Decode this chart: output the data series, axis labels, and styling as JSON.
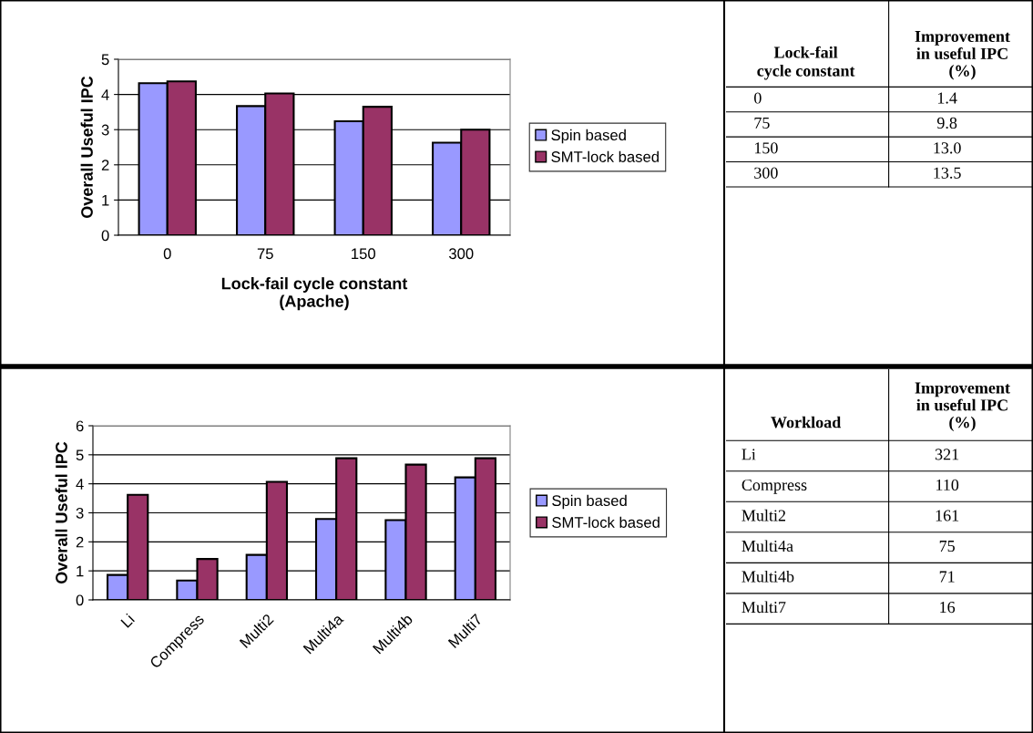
{
  "chart_data": [
    {
      "type": "bar",
      "xlabel": "Lock-fail cycle constant\n(Apache)",
      "ylabel": "Overall Useful IPC",
      "categories": [
        "0",
        "75",
        "150",
        "300"
      ],
      "series": [
        {
          "name": "Spin based",
          "color": "#9999ff",
          "values": [
            4.32,
            3.67,
            3.24,
            2.63
          ]
        },
        {
          "name": "SMT-lock based",
          "color": "#993366",
          "values": [
            4.37,
            4.03,
            3.65,
            3.0
          ]
        }
      ],
      "ylim": [
        0,
        5
      ],
      "yticks": [
        0,
        1,
        2,
        3,
        4,
        5
      ],
      "grid": "y",
      "legend": "right"
    },
    {
      "type": "other",
      "xlabel": "Lock-fail cycle constant",
      "ylabel": "Improvement in useful IPC (%)",
      "categories": [
        "0",
        "75",
        "150",
        "300"
      ],
      "values": [
        1.4,
        9.8,
        13.0,
        13.5
      ],
      "value_labels": [
        "1.4",
        "9.8",
        "13.0",
        "13.5"
      ]
    },
    {
      "type": "bar",
      "ylabel": "Overall Useful IPC",
      "categories": [
        "Li",
        "Compress",
        "Multi2",
        "Multi4a",
        "Multi4b",
        "Multi7"
      ],
      "series": [
        {
          "name": "Spin based",
          "color": "#9999ff",
          "values": [
            0.86,
            0.67,
            1.55,
            2.79,
            2.75,
            4.22
          ]
        },
        {
          "name": "SMT-lock based",
          "color": "#993366",
          "values": [
            3.62,
            1.41,
            4.07,
            4.88,
            4.66,
            4.88
          ]
        }
      ],
      "ylim": [
        0,
        6
      ],
      "yticks": [
        0,
        1,
        2,
        3,
        4,
        5,
        6
      ],
      "grid": "y",
      "legend": "right"
    },
    {
      "type": "other",
      "xlabel": "Workload",
      "ylabel": "Improvement in useful IPC (%)",
      "categories": [
        "Li",
        "Compress",
        "Multi2",
        "Multi4a",
        "Multi4b",
        "Multi7"
      ],
      "values": [
        321,
        110,
        161,
        75,
        71,
        16
      ],
      "data_labels": true
    }
  ]
}
